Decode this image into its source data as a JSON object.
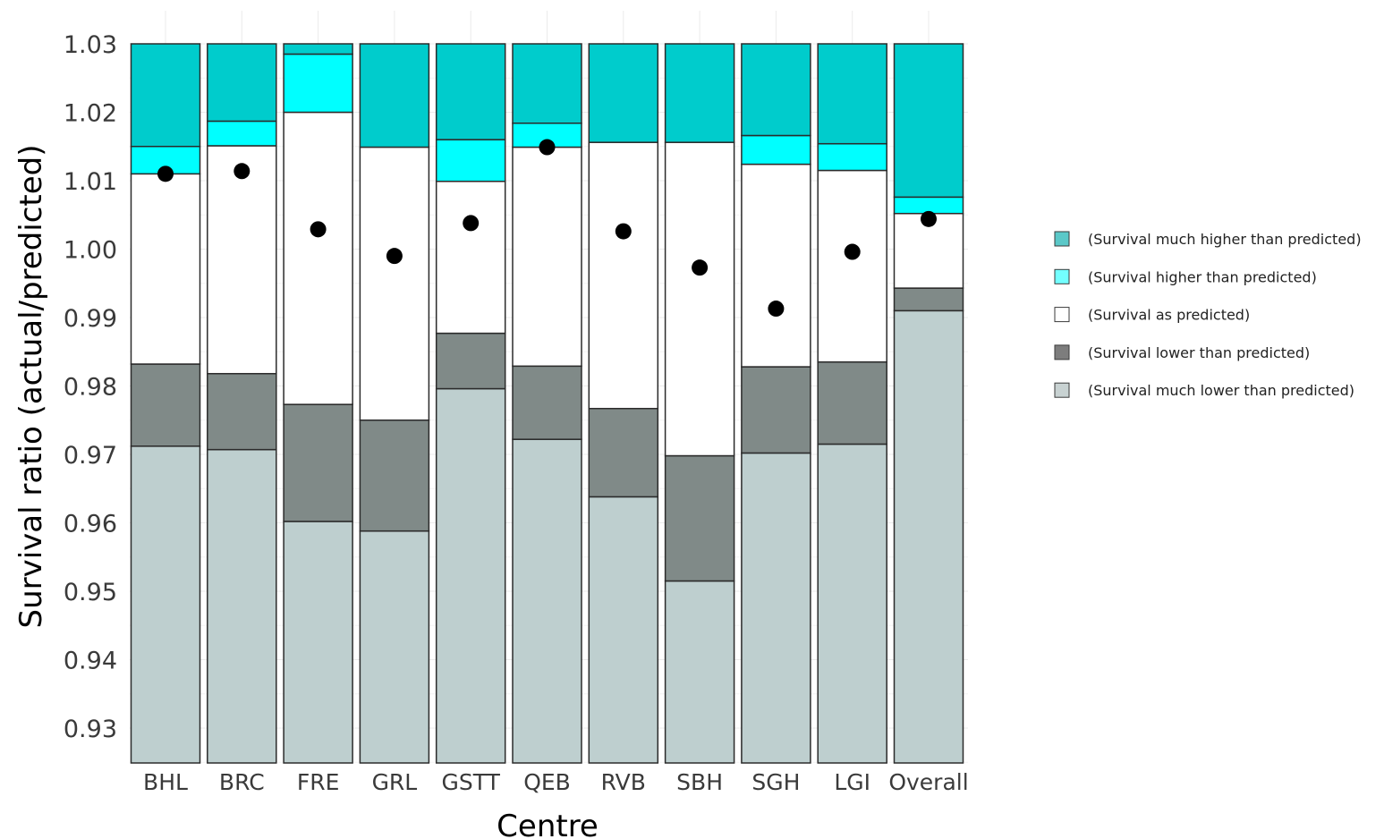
{
  "chart_data": {
    "type": "bar",
    "stacked": true,
    "xlabel": "Centre",
    "ylabel": "Survival ratio (actual/predicted)",
    "ylim": [
      0.925,
      1.03
    ],
    "yticks": [
      "0.93",
      "0.94",
      "0.95",
      "0.96",
      "0.97",
      "0.98",
      "0.99",
      "1.00",
      "1.01",
      "1.02",
      "1.03"
    ],
    "categories": [
      "BHL",
      "BRC",
      "FRE",
      "GRL",
      "GSTT",
      "QEB",
      "RVB",
      "SBH",
      "SGH",
      "LGI",
      "Overall"
    ],
    "boundaries": [
      {
        "much_lower_top": 0.9712,
        "lower_top": 0.9832,
        "as_predicted_top": 1.011,
        "higher_top": 1.015
      },
      {
        "much_lower_top": 0.9707,
        "lower_top": 0.9818,
        "as_predicted_top": 1.0151,
        "higher_top": 1.0187
      },
      {
        "much_lower_top": 0.9602,
        "lower_top": 0.9773,
        "as_predicted_top": 1.02,
        "higher_top": 1.0285
      },
      {
        "much_lower_top": 0.9588,
        "lower_top": 0.975,
        "as_predicted_top": 1.0149,
        "higher_top": 1.0149
      },
      {
        "much_lower_top": 0.9796,
        "lower_top": 0.9877,
        "as_predicted_top": 1.0099,
        "higher_top": 1.016
      },
      {
        "much_lower_top": 0.9722,
        "lower_top": 0.9829,
        "as_predicted_top": 1.0149,
        "higher_top": 1.0184
      },
      {
        "much_lower_top": 0.9638,
        "lower_top": 0.9767,
        "as_predicted_top": 1.0156,
        "higher_top": 1.0156
      },
      {
        "much_lower_top": 0.9515,
        "lower_top": 0.9698,
        "as_predicted_top": 1.0156,
        "higher_top": 1.0156
      },
      {
        "much_lower_top": 0.9702,
        "lower_top": 0.9828,
        "as_predicted_top": 1.0124,
        "higher_top": 1.0166
      },
      {
        "much_lower_top": 0.9715,
        "lower_top": 0.9835,
        "as_predicted_top": 1.0115,
        "higher_top": 1.0154
      },
      {
        "much_lower_top": 0.991,
        "lower_top": 0.9943,
        "as_predicted_top": 1.0052,
        "higher_top": 1.0076
      }
    ],
    "points": [
      1.011,
      1.0114,
      1.0029,
      0.999,
      1.0038,
      1.0149,
      1.0026,
      0.9973,
      0.9913,
      0.9996,
      1.0044
    ],
    "series": [
      {
        "name": "(Survival much higher than predicted)",
        "color": "#00CCCC"
      },
      {
        "name": "(Survival higher than predicted)",
        "color": "#00FFFF"
      },
      {
        "name": "(Survival as predicted)",
        "color": "#FFFFFF"
      },
      {
        "name": "(Survival lower than predicted)",
        "color": "#808A88"
      },
      {
        "name": "(Survival much lower than predicted)",
        "color": "#BECFCF"
      }
    ],
    "legend_position": "right",
    "grid": true
  }
}
